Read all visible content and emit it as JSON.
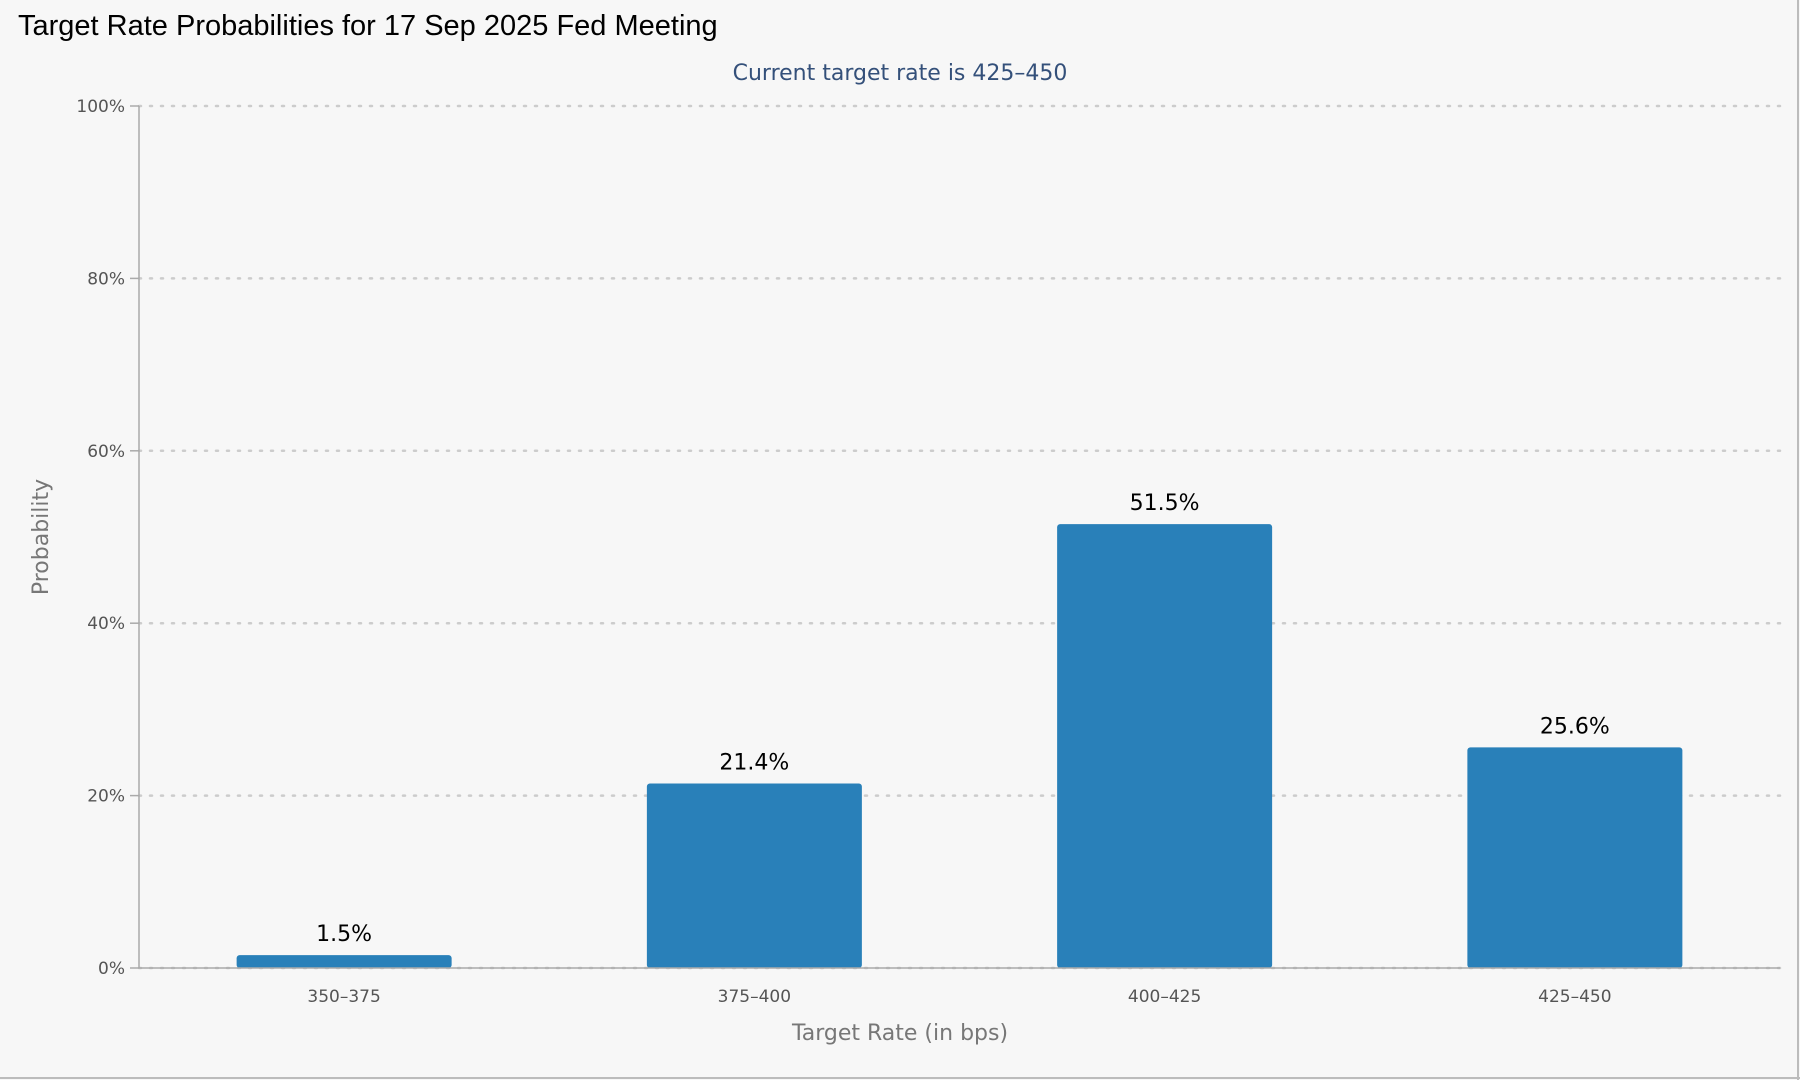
{
  "page": {
    "title": "Target Rate Probabilities for 17 Sep 2025 Fed Meeting"
  },
  "colors": {
    "bar": "#2980b9",
    "subtitle": "#34507a",
    "grid": "#cccccc",
    "axis": "#aaaaaa"
  },
  "chart_data": {
    "type": "bar",
    "title": "Target Rate Probabilities for 17 Sep 2025 Fed Meeting",
    "subtitle": "Current target rate is 425–450",
    "xlabel": "Target Rate (in bps)",
    "ylabel": "Probability",
    "categories": [
      "350–375",
      "375–400",
      "400–425",
      "425–450"
    ],
    "values": [
      1.5,
      21.4,
      51.5,
      25.6
    ],
    "data_labels": [
      "1.5%",
      "21.4%",
      "51.5%",
      "25.6%"
    ],
    "ylim": [
      0,
      100
    ],
    "yticks": [
      0,
      20,
      40,
      60,
      80,
      100
    ],
    "ytick_labels": [
      "0%",
      "20%",
      "40%",
      "60%",
      "80%",
      "100%"
    ],
    "grid": true,
    "legend": "none"
  }
}
